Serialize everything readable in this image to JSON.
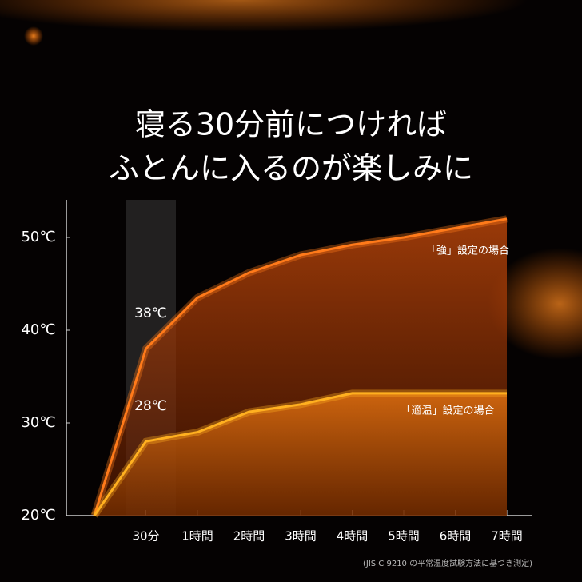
{
  "chart_data": {
    "type": "line",
    "title": "寝る30分前につければ",
    "subtitle": "ふとんに入るのが楽しみに",
    "categories": [
      null,
      "30分",
      "1時間",
      "2時間",
      "3時間",
      "4時間",
      "5時間",
      "6時間",
      "7時間"
    ],
    "series": [
      {
        "name": "「強」設定の場合",
        "color": "#ff7a1a",
        "values": [
          20,
          38,
          43.5,
          46.2,
          48.1,
          49.2,
          50,
          51,
          52
        ],
        "value_labels": [
          null,
          "38℃",
          null,
          null,
          null,
          null,
          null,
          null,
          null
        ]
      },
      {
        "name": "「適温」設定の場合",
        "color": "#ffb020",
        "values": [
          20,
          28,
          29,
          31.2,
          32,
          33.2,
          33.2,
          33.2,
          33.2
        ],
        "value_labels": [
          null,
          "28℃",
          null,
          null,
          null,
          null,
          null,
          null,
          null
        ]
      }
    ],
    "ylim": [
      20,
      54
    ],
    "yticks": [
      {
        "value": 20,
        "label": "20℃"
      },
      {
        "value": 30,
        "label": "30℃"
      },
      {
        "value": 40,
        "label": "40℃"
      },
      {
        "value": 50,
        "label": "50℃"
      }
    ],
    "footnote": "(JIS C 9210 の平常温度試験方法に基づき測定)"
  }
}
